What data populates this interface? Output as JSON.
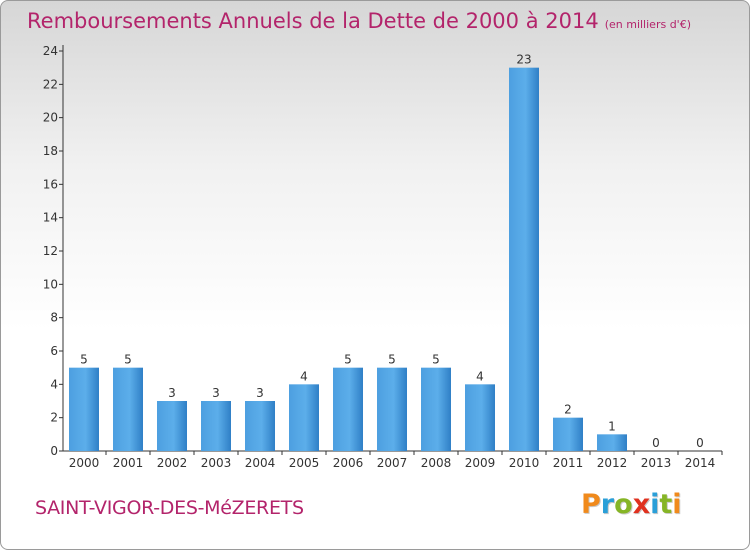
{
  "title": "Remboursements Annuels de la Dette de 2000 à 2014",
  "unit_note": "(en milliers d'€)",
  "commune": "SAINT-VIGOR-DES-MéZERETS",
  "brand": {
    "name": "Proxiti",
    "letters": [
      {
        "ch": "P",
        "color": "#f08a1c"
      },
      {
        "ch": "r",
        "color": "#2a9fd8"
      },
      {
        "ch": "o",
        "color": "#86b526"
      },
      {
        "ch": "x",
        "color": "#e0311f"
      },
      {
        "ch": "i",
        "color": "#2a9fd8"
      },
      {
        "ch": "t",
        "color": "#86b526"
      },
      {
        "ch": "i",
        "color": "#f08a1c"
      }
    ]
  },
  "chart_data": {
    "type": "bar",
    "title": "Remboursements Annuels de la Dette de 2000 à 2014",
    "xlabel": "",
    "ylabel": "",
    "categories": [
      "2000",
      "2001",
      "2002",
      "2003",
      "2004",
      "2005",
      "2006",
      "2007",
      "2008",
      "2009",
      "2010",
      "2011",
      "2012",
      "2013",
      "2014"
    ],
    "values": [
      5,
      5,
      3,
      3,
      3,
      4,
      5,
      5,
      5,
      4,
      23,
      2,
      1,
      0,
      0
    ],
    "data_labels": [
      "5",
      "5",
      "3",
      "3",
      "3",
      "4",
      "5",
      "5",
      "5",
      "4",
      "23",
      "2",
      "1",
      "0",
      "0"
    ],
    "ylim": [
      0,
      24
    ],
    "yticks": [
      0,
      2,
      4,
      6,
      8,
      10,
      12,
      14,
      16,
      18,
      20,
      22,
      24
    ],
    "grid": false,
    "bar_color": "#3a8fd6",
    "legend": "none"
  }
}
